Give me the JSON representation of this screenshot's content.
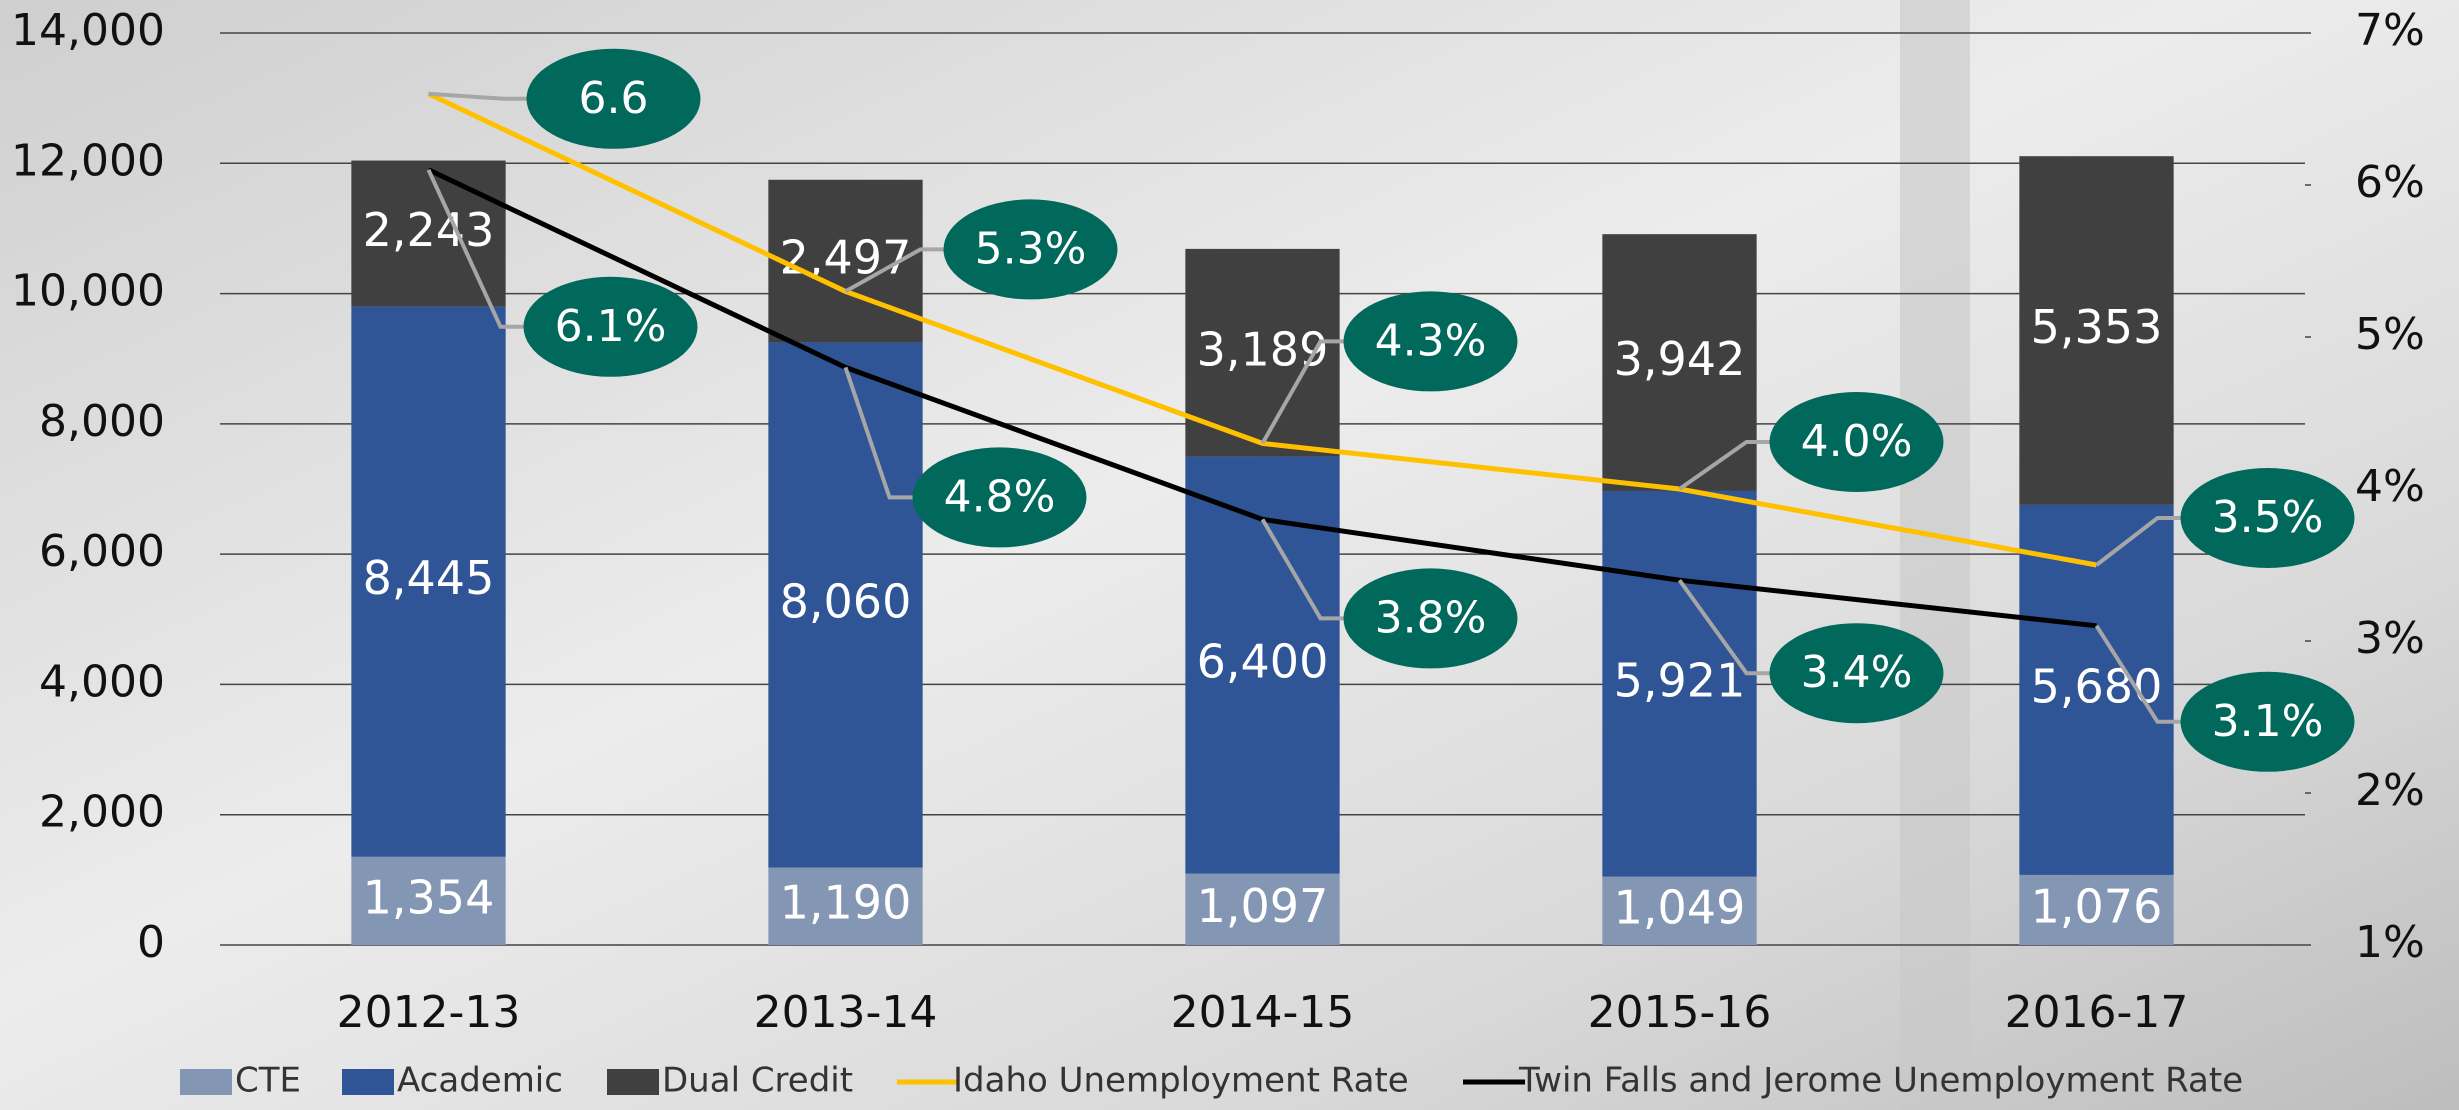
{
  "chart_data": {
    "type": "bar",
    "stacked": true,
    "categories": [
      "2012-13",
      "2013-14",
      "2014-15",
      "2015-16",
      "2016-17"
    ],
    "series": [
      {
        "name": "CTE",
        "color": "#8397b4",
        "values": [
          1354,
          1190,
          1097,
          1049,
          1076
        ],
        "value_labels": [
          "1,354",
          "1,190",
          "1,097",
          "1,049",
          "1,076"
        ]
      },
      {
        "name": "Academic",
        "color": "#2f5597",
        "values": [
          8445,
          8060,
          6400,
          5921,
          5680
        ],
        "value_labels": [
          "8,445",
          "8,060",
          "6,400",
          "5,921",
          "5,680"
        ]
      },
      {
        "name": "Dual Credit",
        "color": "#404040",
        "values": [
          2243,
          2497,
          3189,
          3942,
          5353
        ],
        "value_labels": [
          "2,243",
          "2,497",
          "3,189",
          "3,942",
          "5,353"
        ]
      },
      {
        "name": "Idaho Unemployment Rate",
        "type": "line",
        "axis": "y2",
        "color": "#ffc000",
        "values": [
          6.6,
          5.3,
          4.3,
          4.0,
          3.5
        ],
        "value_labels": [
          "6.6",
          "5.3%",
          "4.3%",
          "4.0%",
          "3.5%"
        ]
      },
      {
        "name": "Twin Falls and Jerome Unemployment Rate",
        "type": "line",
        "axis": "y2",
        "color": "#000000",
        "values": [
          6.1,
          4.8,
          3.8,
          3.4,
          3.1
        ],
        "value_labels": [
          "6.1%",
          "4.8%",
          "3.8%",
          "3.4%",
          "3.1%"
        ]
      }
    ],
    "ylim": [
      0,
      14000
    ],
    "yticks": [
      0,
      {
        "value": 2000,
        "label": "2,000"
      },
      {
        "value": 4000,
        "label": "4,000"
      },
      {
        "value": 6000,
        "label": "6,000"
      },
      {
        "value": 8000,
        "label": "8,000"
      },
      {
        "value": 10000,
        "label": "10,000"
      },
      {
        "value": 12000,
        "label": "12,000"
      },
      {
        "value": 14000,
        "label": "14,000"
      }
    ],
    "y2lim": [
      1,
      7
    ],
    "y2ticks": [
      {
        "value": 1,
        "label": "1%"
      },
      {
        "value": 2,
        "label": "2%"
      },
      {
        "value": 3,
        "label": "3%"
      },
      {
        "value": 4,
        "label": "4%"
      },
      {
        "value": 5,
        "label": "5%"
      },
      {
        "value": 6,
        "label": "6%"
      },
      {
        "value": 7,
        "label": "7%"
      }
    ],
    "grid": true,
    "legend": "bottom",
    "label_color": "#00695c"
  }
}
